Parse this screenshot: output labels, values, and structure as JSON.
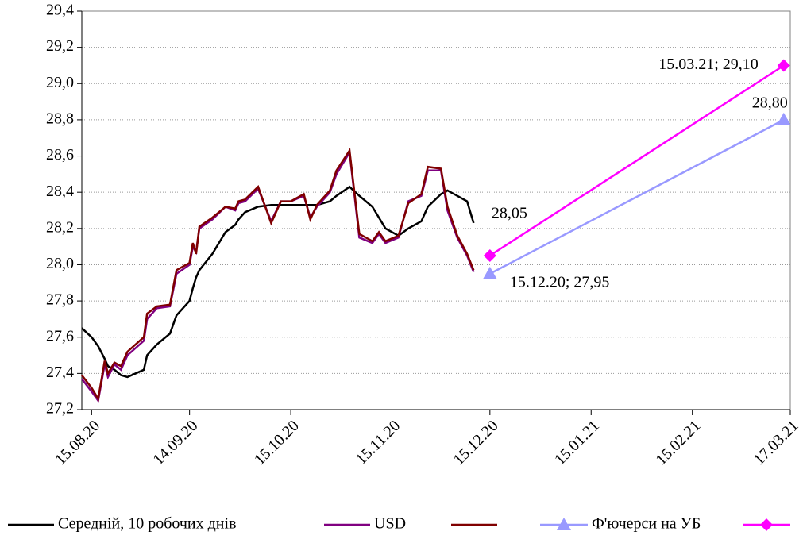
{
  "chart_data": {
    "type": "line",
    "xlim": [
      "12.08.20",
      "17.03.21"
    ],
    "xticks": [
      "15.08.20",
      "14.09.20",
      "15.10.20",
      "15.11.20",
      "15.12.20",
      "15.01.21",
      "15.02.21",
      "17.03.21"
    ],
    "ylim": [
      27.2,
      29.4
    ],
    "yticks": [
      {
        "value": 27.2,
        "label": "27,2"
      },
      {
        "value": 27.4,
        "label": "27,4"
      },
      {
        "value": 27.6,
        "label": "27,6"
      },
      {
        "value": 27.8,
        "label": "27,8"
      },
      {
        "value": 28.0,
        "label": "28,0"
      },
      {
        "value": 28.2,
        "label": "28,2"
      },
      {
        "value": 28.4,
        "label": "28,4"
      },
      {
        "value": 28.6,
        "label": "28,6"
      },
      {
        "value": 28.8,
        "label": "28,8"
      },
      {
        "value": 29.0,
        "label": "29,0"
      },
      {
        "value": 29.2,
        "label": "29,2"
      },
      {
        "value": 29.4,
        "label": "29,4"
      }
    ],
    "grid": true,
    "legend": "bottom",
    "x": [
      "12.08.20",
      "15.08.20",
      "17.08.20",
      "19.08.20",
      "20.08.20",
      "22.08.20",
      "24.08.20",
      "26.08.20",
      "31.08.20",
      "01.09.20",
      "04.09.20",
      "08.09.20",
      "10.09.20",
      "14.09.20",
      "15.09.20",
      "16.09.20",
      "17.09.20",
      "21.09.20",
      "25.09.20",
      "28.09.20",
      "29.09.20",
      "01.10.20",
      "05.10.20",
      "09.10.20",
      "12.10.20",
      "15.10.20",
      "19.10.20",
      "21.10.20",
      "23.10.20",
      "27.10.20",
      "29.10.20",
      "02.11.20",
      "05.11.20",
      "09.11.20",
      "11.11.20",
      "13.11.20",
      "17.11.20",
      "20.11.20",
      "24.11.20",
      "26.11.20",
      "30.11.20",
      "02.12.20",
      "05.12.20",
      "08.12.20",
      "10.12.20"
    ],
    "series": [
      {
        "name": "Середній, 10 робочих днів",
        "color": "#000000",
        "values": [
          27.65,
          27.6,
          27.55,
          27.48,
          27.44,
          27.42,
          27.39,
          27.38,
          27.42,
          27.5,
          27.56,
          27.62,
          27.72,
          27.8,
          27.87,
          27.93,
          27.97,
          28.06,
          28.18,
          28.22,
          28.25,
          28.29,
          28.32,
          28.33,
          28.33,
          28.33,
          28.33,
          28.33,
          28.33,
          28.35,
          28.38,
          28.43,
          28.38,
          28.32,
          28.26,
          28.2,
          28.16,
          28.2,
          28.24,
          28.32,
          28.39,
          28.41,
          28.38,
          28.35,
          28.23
        ]
      },
      {
        "name": "USD",
        "color": "#800080",
        "values": [
          27.37,
          27.3,
          27.25,
          27.45,
          27.38,
          27.45,
          27.42,
          27.5,
          27.58,
          27.7,
          27.76,
          27.77,
          27.95,
          28.0,
          28.1,
          28.07,
          28.2,
          28.25,
          28.32,
          28.3,
          28.34,
          28.35,
          28.42,
          28.24,
          28.35,
          28.35,
          28.38,
          28.26,
          28.32,
          28.4,
          28.5,
          28.62,
          28.15,
          28.12,
          28.17,
          28.12,
          28.15,
          28.35,
          28.38,
          28.52,
          28.52,
          28.3,
          28.15,
          28.05,
          27.96
        ]
      },
      {
        "color": "#800000",
        "values": [
          27.39,
          27.32,
          27.26,
          27.47,
          27.4,
          27.46,
          27.44,
          27.52,
          27.6,
          27.73,
          27.77,
          27.78,
          27.97,
          28.01,
          28.12,
          28.06,
          28.21,
          28.26,
          28.32,
          28.31,
          28.35,
          28.36,
          28.43,
          28.23,
          28.35,
          28.35,
          28.39,
          28.25,
          28.33,
          28.41,
          28.52,
          28.63,
          28.17,
          28.13,
          28.18,
          28.13,
          28.16,
          28.34,
          28.39,
          28.54,
          28.53,
          28.32,
          28.16,
          28.06,
          27.97
        ]
      },
      {
        "name": "Ф'ючерси на УБ",
        "color": "#9999ff",
        "marker": "triangle",
        "x": [
          "15.12.20",
          "15.03.21"
        ],
        "values": [
          27.95,
          28.8
        ],
        "value_labels": [
          "15.12.20; 27,95",
          "28,80"
        ]
      },
      {
        "color": "#ff00ff",
        "marker": "diamond",
        "x": [
          "15.12.20",
          "15.03.21"
        ],
        "values": [
          28.05,
          29.1
        ],
        "value_labels": [
          "28,05",
          "15.03.21; 29,10"
        ]
      }
    ]
  }
}
